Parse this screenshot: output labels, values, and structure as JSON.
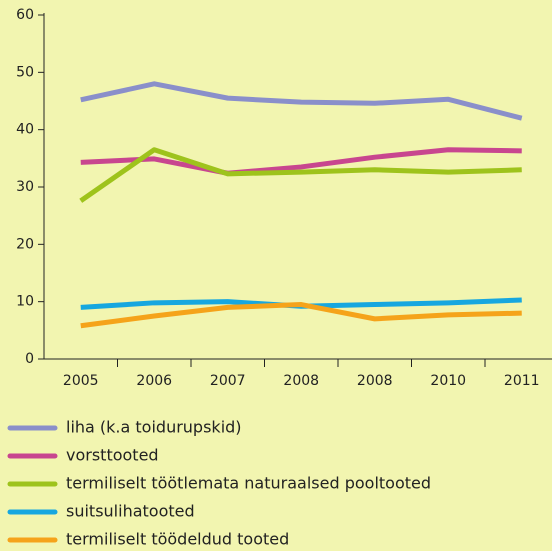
{
  "chart_data": {
    "type": "line",
    "categories": [
      "2005",
      "2006",
      "2007",
      "2008",
      "2008",
      "2010",
      "2011"
    ],
    "series": [
      {
        "name": "liha (k.a toidurupskid)",
        "color": "#8a8fca",
        "values": [
          45.2,
          48,
          45.5,
          44.8,
          44.6,
          45.3,
          42
        ]
      },
      {
        "name": "vorsttooted",
        "color": "#c8468f",
        "values": [
          34.3,
          34.9,
          32.4,
          33.5,
          35.2,
          36.5,
          36.3
        ]
      },
      {
        "name": "termiliselt töötlemata naturaalsed pooltooted",
        "color": "#9ec31c",
        "values": [
          27.6,
          36.5,
          32.3,
          32.6,
          33,
          32.6,
          33
        ]
      },
      {
        "name": "suitsulihatooted",
        "color": "#17a7df",
        "values": [
          9,
          9.8,
          10,
          9.2,
          9.5,
          9.8,
          10.3
        ]
      },
      {
        "name": "termiliselt töödeldud tooted",
        "color": "#f5a31a",
        "values": [
          5.8,
          7.5,
          9,
          9.5,
          7,
          7.7,
          8
        ]
      }
    ],
    "ylim": [
      0,
      60
    ],
    "yticks": [
      0,
      10,
      20,
      30,
      40,
      50,
      60
    ],
    "legend": "bottom"
  }
}
